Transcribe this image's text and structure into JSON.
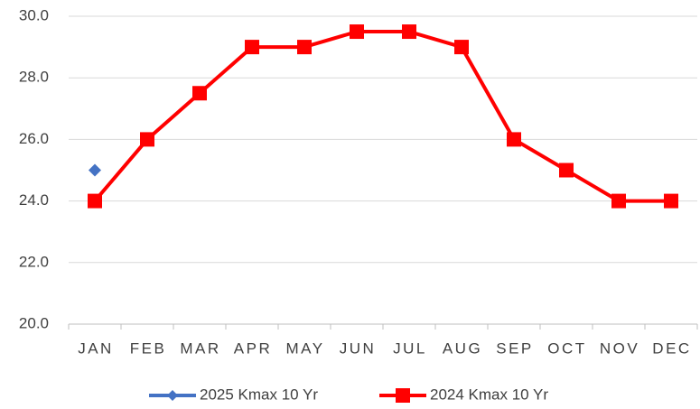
{
  "chart_data": {
    "type": "line",
    "categories": [
      "JAN",
      "FEB",
      "MAR",
      "APR",
      "MAY",
      "JUN",
      "JUL",
      "AUG",
      "SEP",
      "OCT",
      "NOV",
      "DEC"
    ],
    "series": [
      {
        "name": "2025 Kmax 10 Yr",
        "color": "#4472c4",
        "marker": "diamond",
        "values": [
          25,
          null,
          null,
          null,
          null,
          null,
          null,
          null,
          null,
          null,
          null,
          null
        ]
      },
      {
        "name": "2024 Kmax 10 Yr",
        "color": "#ff0000",
        "marker": "square",
        "values": [
          24,
          26,
          27.5,
          29,
          29,
          29.5,
          29.5,
          29,
          26,
          25,
          24,
          24
        ]
      }
    ],
    "ylim": [
      20,
      30
    ],
    "yticks": [
      {
        "value": 20,
        "label": "20.0"
      },
      {
        "value": 22,
        "label": "22.0"
      },
      {
        "value": 24,
        "label": "24.0"
      },
      {
        "value": 26,
        "label": "26.0"
      },
      {
        "value": 28,
        "label": "28.0"
      },
      {
        "value": 30,
        "label": "30.0"
      }
    ],
    "grid": true,
    "legend": "bottom"
  }
}
